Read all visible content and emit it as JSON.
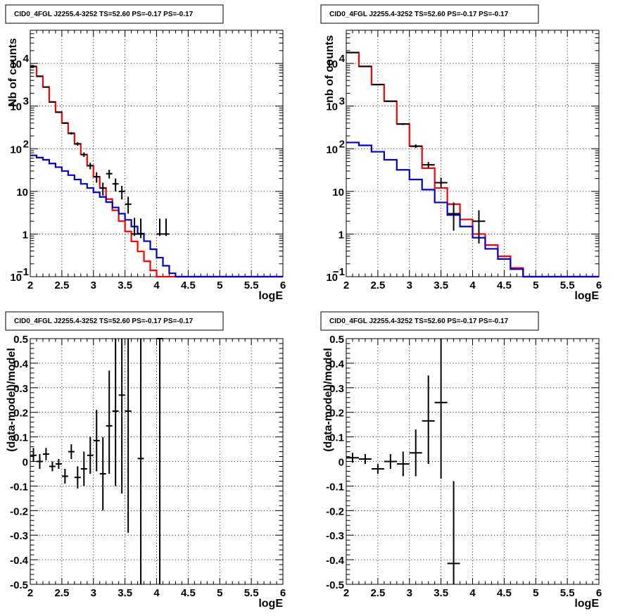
{
  "figure_title": "CID0_4FGL J2255.4-3252 TS=52.60 PS=-0.17 PS=-0.17",
  "colors": {
    "data": "#000000",
    "model_total": "#ff0000",
    "model_source": "#0000cc"
  },
  "chart_data": [
    {
      "type": "line",
      "title": "CID0_4FGL J2255.4-3252 TS=52.60 PS=-0.17 PS=-0.17",
      "xlabel": "logE",
      "ylabel": "Nb of counts",
      "xlim": [
        2,
        6
      ],
      "ylim": [
        0.1,
        60000
      ],
      "yscale": "log",
      "grid": true,
      "xticks": [
        "2",
        "2.5",
        "3",
        "3.5",
        "4",
        "4.5",
        "5",
        "5.5",
        "6"
      ],
      "yticks": [
        {
          "value": 0.1,
          "label": "10",
          "sup": "−1"
        },
        {
          "value": 1,
          "label": "1",
          "sup": ""
        },
        {
          "value": 10,
          "label": "10",
          "sup": ""
        },
        {
          "value": 100,
          "label": "10",
          "sup": "2"
        },
        {
          "value": 1000,
          "label": "10",
          "sup": "3"
        },
        {
          "value": 10000,
          "label": "10",
          "sup": "4"
        }
      ],
      "bin_edges": [
        2.0,
        2.1,
        2.2,
        2.3,
        2.4,
        2.5,
        2.6,
        2.7,
        2.8,
        2.9,
        3.0,
        3.1,
        3.2,
        3.3,
        3.4,
        3.5,
        3.6,
        3.7,
        3.8,
        3.9,
        4.0,
        4.1,
        4.2,
        4.3,
        4.4,
        4.5,
        4.6,
        4.7,
        4.8,
        4.9,
        5.0,
        5.1,
        5.2,
        5.3,
        5.4,
        5.5,
        5.6,
        5.7,
        5.8,
        5.9,
        6.0
      ],
      "series": [
        {
          "kind": "hist",
          "color": "#ff0000",
          "values": [
            8500,
            5000,
            2800,
            1250,
            720,
            400,
            230,
            130,
            73,
            40,
            22,
            12,
            6.6,
            3.6,
            2.0,
            1.15,
            0.67,
            0.39,
            0.23,
            0.14,
            0.1,
            0.1,
            0.1,
            0.1,
            0.1,
            0.1,
            0.1,
            0.1,
            0.1,
            0.1,
            0.1,
            0.1,
            0.1,
            0.1,
            0.1,
            0.1,
            0.1,
            0.1,
            0.1,
            0.1
          ]
        },
        {
          "kind": "hist",
          "color": "#0000cc",
          "values": [
            70,
            62,
            55,
            45,
            37,
            30,
            24,
            19,
            15,
            12,
            9.5,
            7.4,
            5.6,
            4.2,
            3.0,
            2.15,
            1.5,
            1.02,
            0.68,
            0.44,
            0.28,
            0.18,
            0.12,
            0.1,
            0.1,
            0.1,
            0.1,
            0.1,
            0.1,
            0.1,
            0.1,
            0.1,
            0.1,
            0.1,
            0.1,
            0.1,
            0.1,
            0.1,
            0.1,
            0.1
          ]
        },
        {
          "kind": "points",
          "color": "#000000",
          "x": [
            2.05,
            2.15,
            2.25,
            2.35,
            2.45,
            2.55,
            2.65,
            2.75,
            2.85,
            2.95,
            3.05,
            3.15,
            3.25,
            3.35,
            3.45,
            3.55,
            3.65,
            3.75,
            4.05,
            4.15
          ],
          "y": [
            8500,
            5000,
            2800,
            1250,
            720,
            400,
            230,
            130,
            73,
            40,
            22,
            12,
            26,
            15,
            10,
            5,
            1,
            1,
            1,
            1
          ],
          "yerr_low": [
            8400,
            4925,
            2745,
            1215,
            693,
            380,
            215,
            118,
            64,
            33,
            16,
            8,
            20,
            10,
            6.5,
            3,
            0.9,
            0.8,
            0.9,
            0.9
          ],
          "yerr_high": [
            8600,
            5075,
            2855,
            1285,
            747,
            420,
            245,
            142,
            82,
            47,
            28,
            16,
            32,
            20,
            13.5,
            7.5,
            2.4,
            2.3,
            2.3,
            2.3
          ]
        }
      ]
    },
    {
      "type": "line",
      "title": "CID0_4FGL J2255.4-3252 TS=52.60 PS=-0.17 PS=-0.17",
      "xlabel": "logE",
      "ylabel": "nb of counts",
      "xlim": [
        2,
        6
      ],
      "ylim": [
        0.1,
        60000
      ],
      "yscale": "log",
      "grid": true,
      "xticks": [
        "2",
        "2.5",
        "3",
        "3.5",
        "4",
        "4.5",
        "5",
        "5.5",
        "6"
      ],
      "yticks": [
        {
          "value": 0.1,
          "label": "10",
          "sup": "−1"
        },
        {
          "value": 1,
          "label": "1",
          "sup": ""
        },
        {
          "value": 10,
          "label": "10",
          "sup": ""
        },
        {
          "value": 100,
          "label": "10",
          "sup": "2"
        },
        {
          "value": 1000,
          "label": "10",
          "sup": "3"
        },
        {
          "value": 10000,
          "label": "10",
          "sup": "4"
        }
      ],
      "bin_edges": [
        2.0,
        2.2,
        2.4,
        2.6,
        2.8,
        3.0,
        3.2,
        3.4,
        3.6,
        3.8,
        4.0,
        4.2,
        4.4,
        4.6,
        4.8,
        5.0,
        5.2,
        5.4,
        5.6,
        5.8,
        6.0
      ],
      "series": [
        {
          "kind": "hist",
          "color": "#ff0000",
          "values": [
            18000,
            8500,
            3200,
            1300,
            380,
            115,
            35,
            12,
            5,
            2.2,
            1.0,
            0.55,
            0.3,
            0.16,
            0.1,
            0.1,
            0.1,
            0.1,
            0.1,
            0.1
          ]
        },
        {
          "kind": "hist",
          "color": "#0000cc",
          "values": [
            140,
            120,
            85,
            55,
            32,
            19,
            11,
            5.5,
            2.8,
            1.5,
            0.82,
            0.45,
            0.26,
            0.15,
            0.1,
            0.1,
            0.1,
            0.1,
            0.1,
            0.1
          ]
        },
        {
          "kind": "points",
          "color": "#000000",
          "x": [
            2.1,
            2.3,
            2.5,
            2.7,
            2.9,
            3.1,
            3.3,
            3.5,
            3.7,
            4.1
          ],
          "y": [
            18000,
            8500,
            3200,
            1300,
            380,
            115,
            42,
            16,
            3,
            2
          ],
          "yerr_low": [
            17850,
            8400,
            3140,
            1265,
            360,
            104,
            35,
            12,
            1.2,
            0.6
          ],
          "yerr_high": [
            18150,
            8600,
            3260,
            1335,
            400,
            126,
            49,
            21,
            5.5,
            3.6
          ]
        }
      ]
    },
    {
      "type": "scatter",
      "title": "CID0_4FGL J2255.4-3252 TS=52.60 PS=-0.17 PS=-0.17",
      "xlabel": "logE",
      "ylabel": "(data-model)/model",
      "xlim": [
        2,
        6
      ],
      "ylim": [
        -0.5,
        0.5
      ],
      "grid": true,
      "xticks": [
        "2",
        "2.5",
        "3",
        "3.5",
        "4",
        "4.5",
        "5",
        "5.5",
        "6"
      ],
      "yticks": [
        "-0.5",
        "-0.4",
        "-0.3",
        "-0.2",
        "-0.1",
        "0",
        "0.1",
        "0.2",
        "0.3",
        "0.4",
        "0.5"
      ],
      "series": [
        {
          "kind": "points",
          "color": "#000000",
          "x": [
            2.05,
            2.15,
            2.25,
            2.35,
            2.45,
            2.55,
            2.65,
            2.75,
            2.85,
            2.95,
            3.05,
            3.15,
            3.25,
            3.35,
            3.45,
            3.55,
            3.75,
            4.05
          ],
          "y": [
            0.025,
            0.0,
            0.03,
            -0.02,
            -0.01,
            -0.06,
            0.04,
            -0.065,
            -0.03,
            0.025,
            0.085,
            -0.05,
            0.145,
            0.205,
            0.27,
            0.205,
            0.012,
            0.5
          ],
          "yerr_low": [
            0.0,
            -0.03,
            0.005,
            -0.04,
            -0.03,
            -0.09,
            0.01,
            -0.11,
            -0.1,
            -0.05,
            -0.04,
            -0.2,
            -0.05,
            -0.1,
            -0.13,
            -0.29,
            -0.6,
            -0.6
          ],
          "yerr_high": [
            0.055,
            0.03,
            0.055,
            0.0,
            0.01,
            -0.03,
            0.07,
            -0.02,
            0.04,
            0.1,
            0.21,
            0.1,
            0.37,
            0.55,
            0.6,
            0.6,
            0.6,
            0.6
          ]
        }
      ]
    },
    {
      "type": "scatter",
      "title": "CID0_4FGL J2255.4-3252 TS=52.60 PS=-0.17 PS=-0.17",
      "xlabel": "logE",
      "ylabel": "(data-model)/model",
      "xlim": [
        2,
        6
      ],
      "ylim": [
        -0.5,
        0.5
      ],
      "grid": true,
      "xticks": [
        "2",
        "2.5",
        "3",
        "3.5",
        "4",
        "4.5",
        "5",
        "5.5",
        "6"
      ],
      "yticks": [
        "-0.5",
        "-0.4",
        "-0.3",
        "-0.2",
        "-0.1",
        "0",
        "0.1",
        "0.2",
        "0.3",
        "0.4",
        "0.5"
      ],
      "series": [
        {
          "kind": "points",
          "color": "#000000",
          "x": [
            2.1,
            2.3,
            2.5,
            2.7,
            2.9,
            3.1,
            3.3,
            3.5,
            3.7
          ],
          "y": [
            0.015,
            0.01,
            -0.03,
            0.0,
            -0.01,
            0.035,
            0.165,
            0.24,
            -0.415
          ],
          "yerr_low": [
            -0.005,
            -0.01,
            -0.05,
            -0.03,
            -0.06,
            -0.06,
            -0.01,
            -0.07,
            -0.6
          ],
          "yerr_high": [
            0.035,
            0.03,
            -0.01,
            0.03,
            0.04,
            0.13,
            0.35,
            0.5,
            -0.08
          ]
        }
      ]
    }
  ]
}
